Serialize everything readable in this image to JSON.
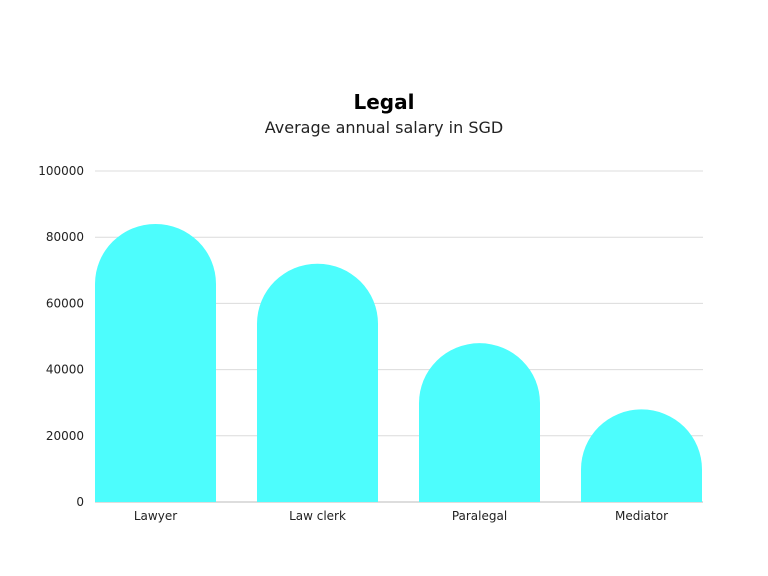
{
  "chart_data": {
    "type": "bar",
    "title": "Legal",
    "subtitle": "Average annual salary in SGD",
    "categories": [
      "Lawyer",
      "Law clerk",
      "Paralegal",
      "Mediator"
    ],
    "values": [
      84000,
      72000,
      48000,
      28000
    ],
    "ylim": [
      0,
      100000
    ],
    "yticks": [
      0,
      20000,
      40000,
      60000,
      80000,
      100000
    ],
    "ytick_labels": [
      "0",
      "20000",
      "40000",
      "60000",
      "80000",
      "100000"
    ],
    "grid": true,
    "legend": "none",
    "bar_color": "#4dfdfd",
    "bar_style": "rounded-top"
  }
}
